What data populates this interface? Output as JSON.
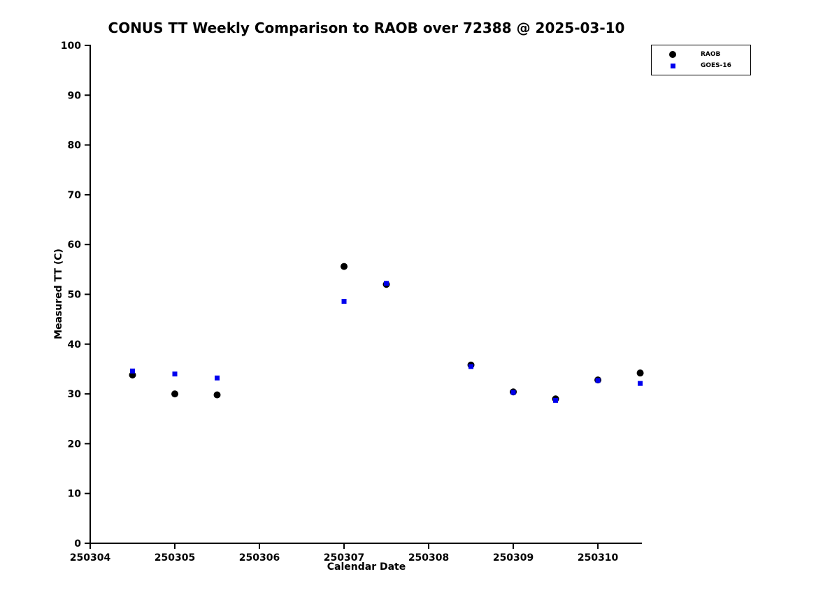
{
  "chart_data": {
    "type": "scatter",
    "title": "CONUS TT Weekly Comparison to RAOB over 72388 @ 2025-03-10",
    "xlabel": "Calendar Date",
    "ylabel": "Measured TT (C)",
    "xlim": [
      250304,
      250310.52
    ],
    "ylim": [
      0,
      100
    ],
    "xticks": [
      250304,
      250305,
      250306,
      250307,
      250308,
      250309,
      250310
    ],
    "yticks": [
      0,
      10,
      20,
      30,
      40,
      50,
      60,
      70,
      80,
      90,
      100
    ],
    "grid": false,
    "legend_position": "top-right",
    "series": [
      {
        "name": "RAOB",
        "marker": "circle",
        "color": "#000000",
        "points": [
          {
            "x": 250304.5,
            "y": 33.8
          },
          {
            "x": 250305.0,
            "y": 30.0
          },
          {
            "x": 250305.5,
            "y": 29.8
          },
          {
            "x": 250307.0,
            "y": 55.6
          },
          {
            "x": 250307.5,
            "y": 52.0
          },
          {
            "x": 250308.5,
            "y": 35.8
          },
          {
            "x": 250309.0,
            "y": 30.4
          },
          {
            "x": 250309.5,
            "y": 29.0
          },
          {
            "x": 250310.0,
            "y": 32.8
          },
          {
            "x": 250310.5,
            "y": 34.2
          }
        ]
      },
      {
        "name": "GOES-16",
        "marker": "square",
        "color": "#0000ee",
        "points": [
          {
            "x": 250304.5,
            "y": 34.6
          },
          {
            "x": 250305.0,
            "y": 34.0
          },
          {
            "x": 250305.5,
            "y": 33.2
          },
          {
            "x": 250307.0,
            "y": 48.6
          },
          {
            "x": 250307.5,
            "y": 52.2
          },
          {
            "x": 250308.5,
            "y": 35.5
          },
          {
            "x": 250309.0,
            "y": 30.3
          },
          {
            "x": 250309.5,
            "y": 28.7
          },
          {
            "x": 250310.0,
            "y": 32.7
          },
          {
            "x": 250310.5,
            "y": 32.1
          }
        ]
      }
    ]
  }
}
